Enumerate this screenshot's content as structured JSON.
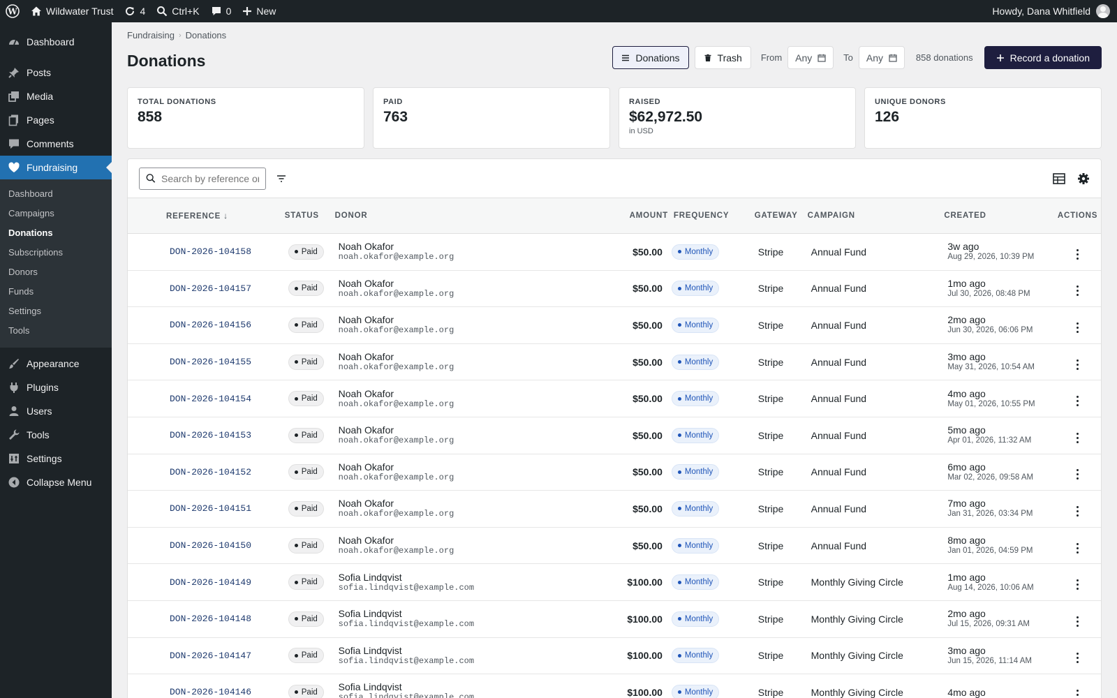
{
  "adminbar": {
    "site_name": "Wildwater Trust",
    "updates_count": "4",
    "search_shortcut": "Ctrl+K",
    "comments_count": "0",
    "new_label": "New",
    "greeting": "Howdy, Dana Whitfield"
  },
  "sidebar": {
    "items_top": [
      {
        "label": "Dashboard",
        "icon": "dashboard-icon"
      }
    ],
    "items_mid": [
      {
        "label": "Posts",
        "icon": "pin-icon"
      },
      {
        "label": "Media",
        "icon": "media-icon"
      },
      {
        "label": "Pages",
        "icon": "pages-icon"
      },
      {
        "label": "Comments",
        "icon": "comment-icon"
      }
    ],
    "current": {
      "label": "Fundraising",
      "icon": "heart-icon"
    },
    "submenu": [
      "Dashboard",
      "Campaigns",
      "Donations",
      "Subscriptions",
      "Donors",
      "Funds",
      "Settings",
      "Tools"
    ],
    "submenu_current_index": 2,
    "items_bottom": [
      {
        "label": "Appearance",
        "icon": "brush-icon"
      },
      {
        "label": "Plugins",
        "icon": "plugin-icon"
      },
      {
        "label": "Users",
        "icon": "users-icon"
      },
      {
        "label": "Tools",
        "icon": "wrench-icon"
      },
      {
        "label": "Settings",
        "icon": "settings-icon"
      },
      {
        "label": "Collapse Menu",
        "icon": "collapse-icon"
      }
    ]
  },
  "breadcrumb": {
    "parent": "Fundraising",
    "current": "Donations"
  },
  "page_title": "Donations",
  "toolbar": {
    "donations_label": "Donations",
    "trash_label": "Trash",
    "from_label": "From",
    "from_value": "Any",
    "to_label": "To",
    "to_value": "Any",
    "count": "858 donations",
    "record_label": "Record a donation"
  },
  "stats": [
    {
      "label": "TOTAL DONATIONS",
      "value": "858",
      "sub": ""
    },
    {
      "label": "PAID",
      "value": "763",
      "sub": ""
    },
    {
      "label": "RAISED",
      "value": "$62,972.50",
      "sub": "in USD"
    },
    {
      "label": "UNIQUE DONORS",
      "value": "126",
      "sub": ""
    }
  ],
  "search": {
    "placeholder": "Search by reference or"
  },
  "table": {
    "headers": {
      "reference": "REFERENCE",
      "status": "STATUS",
      "donor": "DONOR",
      "amount": "AMOUNT",
      "frequency": "FREQUENCY",
      "gateway": "GATEWAY",
      "campaign": "CAMPAIGN",
      "created": "CREATED",
      "actions": "ACTIONS"
    },
    "rows": [
      {
        "ref": "DON-2026-104158",
        "status": "Paid",
        "name": "Noah Okafor",
        "email": "noah.okafor@example.org",
        "amount": "$50.00",
        "freq": "Monthly",
        "gateway": "Stripe",
        "campaign": "Annual Fund",
        "rel": "3w ago",
        "abs": "Aug 29, 2026, 10:39 PM"
      },
      {
        "ref": "DON-2026-104157",
        "status": "Paid",
        "name": "Noah Okafor",
        "email": "noah.okafor@example.org",
        "amount": "$50.00",
        "freq": "Monthly",
        "gateway": "Stripe",
        "campaign": "Annual Fund",
        "rel": "1mo ago",
        "abs": "Jul 30, 2026, 08:48 PM"
      },
      {
        "ref": "DON-2026-104156",
        "status": "Paid",
        "name": "Noah Okafor",
        "email": "noah.okafor@example.org",
        "amount": "$50.00",
        "freq": "Monthly",
        "gateway": "Stripe",
        "campaign": "Annual Fund",
        "rel": "2mo ago",
        "abs": "Jun 30, 2026, 06:06 PM"
      },
      {
        "ref": "DON-2026-104155",
        "status": "Paid",
        "name": "Noah Okafor",
        "email": "noah.okafor@example.org",
        "amount": "$50.00",
        "freq": "Monthly",
        "gateway": "Stripe",
        "campaign": "Annual Fund",
        "rel": "3mo ago",
        "abs": "May 31, 2026, 10:54 AM"
      },
      {
        "ref": "DON-2026-104154",
        "status": "Paid",
        "name": "Noah Okafor",
        "email": "noah.okafor@example.org",
        "amount": "$50.00",
        "freq": "Monthly",
        "gateway": "Stripe",
        "campaign": "Annual Fund",
        "rel": "4mo ago",
        "abs": "May 01, 2026, 10:55 PM"
      },
      {
        "ref": "DON-2026-104153",
        "status": "Paid",
        "name": "Noah Okafor",
        "email": "noah.okafor@example.org",
        "amount": "$50.00",
        "freq": "Monthly",
        "gateway": "Stripe",
        "campaign": "Annual Fund",
        "rel": "5mo ago",
        "abs": "Apr 01, 2026, 11:32 AM"
      },
      {
        "ref": "DON-2026-104152",
        "status": "Paid",
        "name": "Noah Okafor",
        "email": "noah.okafor@example.org",
        "amount": "$50.00",
        "freq": "Monthly",
        "gateway": "Stripe",
        "campaign": "Annual Fund",
        "rel": "6mo ago",
        "abs": "Mar 02, 2026, 09:58 AM"
      },
      {
        "ref": "DON-2026-104151",
        "status": "Paid",
        "name": "Noah Okafor",
        "email": "noah.okafor@example.org",
        "amount": "$50.00",
        "freq": "Monthly",
        "gateway": "Stripe",
        "campaign": "Annual Fund",
        "rel": "7mo ago",
        "abs": "Jan 31, 2026, 03:34 PM"
      },
      {
        "ref": "DON-2026-104150",
        "status": "Paid",
        "name": "Noah Okafor",
        "email": "noah.okafor@example.org",
        "amount": "$50.00",
        "freq": "Monthly",
        "gateway": "Stripe",
        "campaign": "Annual Fund",
        "rel": "8mo ago",
        "abs": "Jan 01, 2026, 04:59 PM"
      },
      {
        "ref": "DON-2026-104149",
        "status": "Paid",
        "name": "Sofia Lindqvist",
        "email": "sofia.lindqvist@example.com",
        "amount": "$100.00",
        "freq": "Monthly",
        "gateway": "Stripe",
        "campaign": "Monthly Giving Circle",
        "rel": "1mo ago",
        "abs": "Aug 14, 2026, 10:06 AM"
      },
      {
        "ref": "DON-2026-104148",
        "status": "Paid",
        "name": "Sofia Lindqvist",
        "email": "sofia.lindqvist@example.com",
        "amount": "$100.00",
        "freq": "Monthly",
        "gateway": "Stripe",
        "campaign": "Monthly Giving Circle",
        "rel": "2mo ago",
        "abs": "Jul 15, 2026, 09:31 AM"
      },
      {
        "ref": "DON-2026-104147",
        "status": "Paid",
        "name": "Sofia Lindqvist",
        "email": "sofia.lindqvist@example.com",
        "amount": "$100.00",
        "freq": "Monthly",
        "gateway": "Stripe",
        "campaign": "Monthly Giving Circle",
        "rel": "3mo ago",
        "abs": "Jun 15, 2026, 11:14 AM"
      },
      {
        "ref": "DON-2026-104146",
        "status": "Paid",
        "name": "Sofia Lindqvist",
        "email": "sofia.lindqvist@example.com",
        "amount": "$100.00",
        "freq": "Monthly",
        "gateway": "Stripe",
        "campaign": "Monthly Giving Circle",
        "rel": "4mo ago",
        "abs": ""
      }
    ]
  },
  "colors": {
    "primary": "#1e1e3f",
    "wp_blue": "#2271b1",
    "admin_dark": "#1d2327",
    "freq_blue": "#1f55b8"
  }
}
